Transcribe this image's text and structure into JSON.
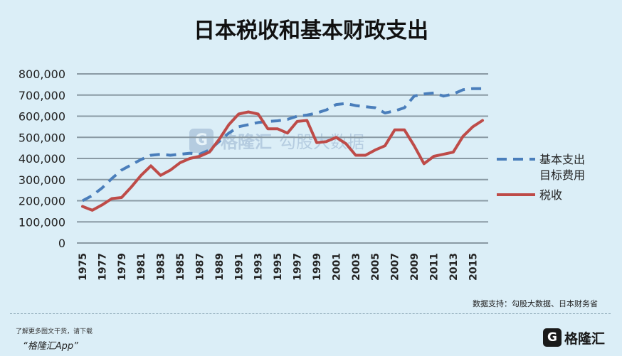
{
  "title": "日本税收和基本财政支出",
  "source": "数据支持：勾股大数据、日本财务省",
  "footer": {
    "line1": "了解更多图文干货，请下载",
    "line2": "“格隆汇App”"
  },
  "logo": {
    "mark": "G",
    "text": "格隆汇"
  },
  "watermark": {
    "mark": "G",
    "text1": "格隆汇",
    "text2": "勾股大数据"
  },
  "chart_data": {
    "type": "line",
    "title": "日本税收和基本财政支出",
    "x": [
      1975,
      1976,
      1977,
      1978,
      1979,
      1980,
      1981,
      1982,
      1983,
      1984,
      1985,
      1986,
      1987,
      1988,
      1989,
      1990,
      1991,
      1992,
      1993,
      1994,
      1995,
      1996,
      1997,
      1998,
      1999,
      2000,
      2001,
      2002,
      2003,
      2004,
      2005,
      2006,
      2007,
      2008,
      2009,
      2010,
      2011,
      2012,
      2013,
      2014,
      2015,
      2016
    ],
    "x_tick_labels": [
      "1975",
      "1977",
      "1979",
      "1981",
      "1983",
      "1985",
      "1987",
      "1989",
      "1991",
      "1993",
      "1995",
      "1997",
      "1999",
      "2001",
      "2003",
      "2005",
      "2007",
      "2009",
      "2011",
      "2013",
      "2015"
    ],
    "y_ticks": [
      "0",
      "100,000",
      "200,000",
      "300,000",
      "400,000",
      "500,000",
      "600,000",
      "700,000",
      "800,000"
    ],
    "ylim": [
      0,
      800000
    ],
    "grid": true,
    "legend_position": "right",
    "series": [
      {
        "name": "基本支出目标费用",
        "name_lines": [
          "基本支出",
          "目标费用"
        ],
        "style": "dashed",
        "color": "#4a7ebb",
        "values": [
          200000,
          225000,
          260000,
          305000,
          345000,
          370000,
          395000,
          415000,
          420000,
          415000,
          420000,
          425000,
          420000,
          440000,
          480000,
          520000,
          550000,
          560000,
          570000,
          575000,
          578000,
          585000,
          600000,
          605000,
          615000,
          630000,
          655000,
          660000,
          650000,
          645000,
          640000,
          615000,
          625000,
          640000,
          695000,
          705000,
          710000,
          695000,
          705000,
          725000,
          730000,
          730000
        ]
      },
      {
        "name": "税收",
        "name_lines": [
          "税收"
        ],
        "style": "solid",
        "color": "#be4b48",
        "values": [
          173000,
          155000,
          180000,
          210000,
          215000,
          265000,
          320000,
          365000,
          320000,
          345000,
          380000,
          400000,
          410000,
          430000,
          490000,
          560000,
          610000,
          620000,
          610000,
          540000,
          540000,
          520000,
          575000,
          580000,
          475000,
          480000,
          500000,
          470000,
          415000,
          415000,
          440000,
          460000,
          535000,
          535000,
          460000,
          375000,
          410000,
          420000,
          430000,
          505000,
          550000,
          580000
        ]
      }
    ]
  }
}
